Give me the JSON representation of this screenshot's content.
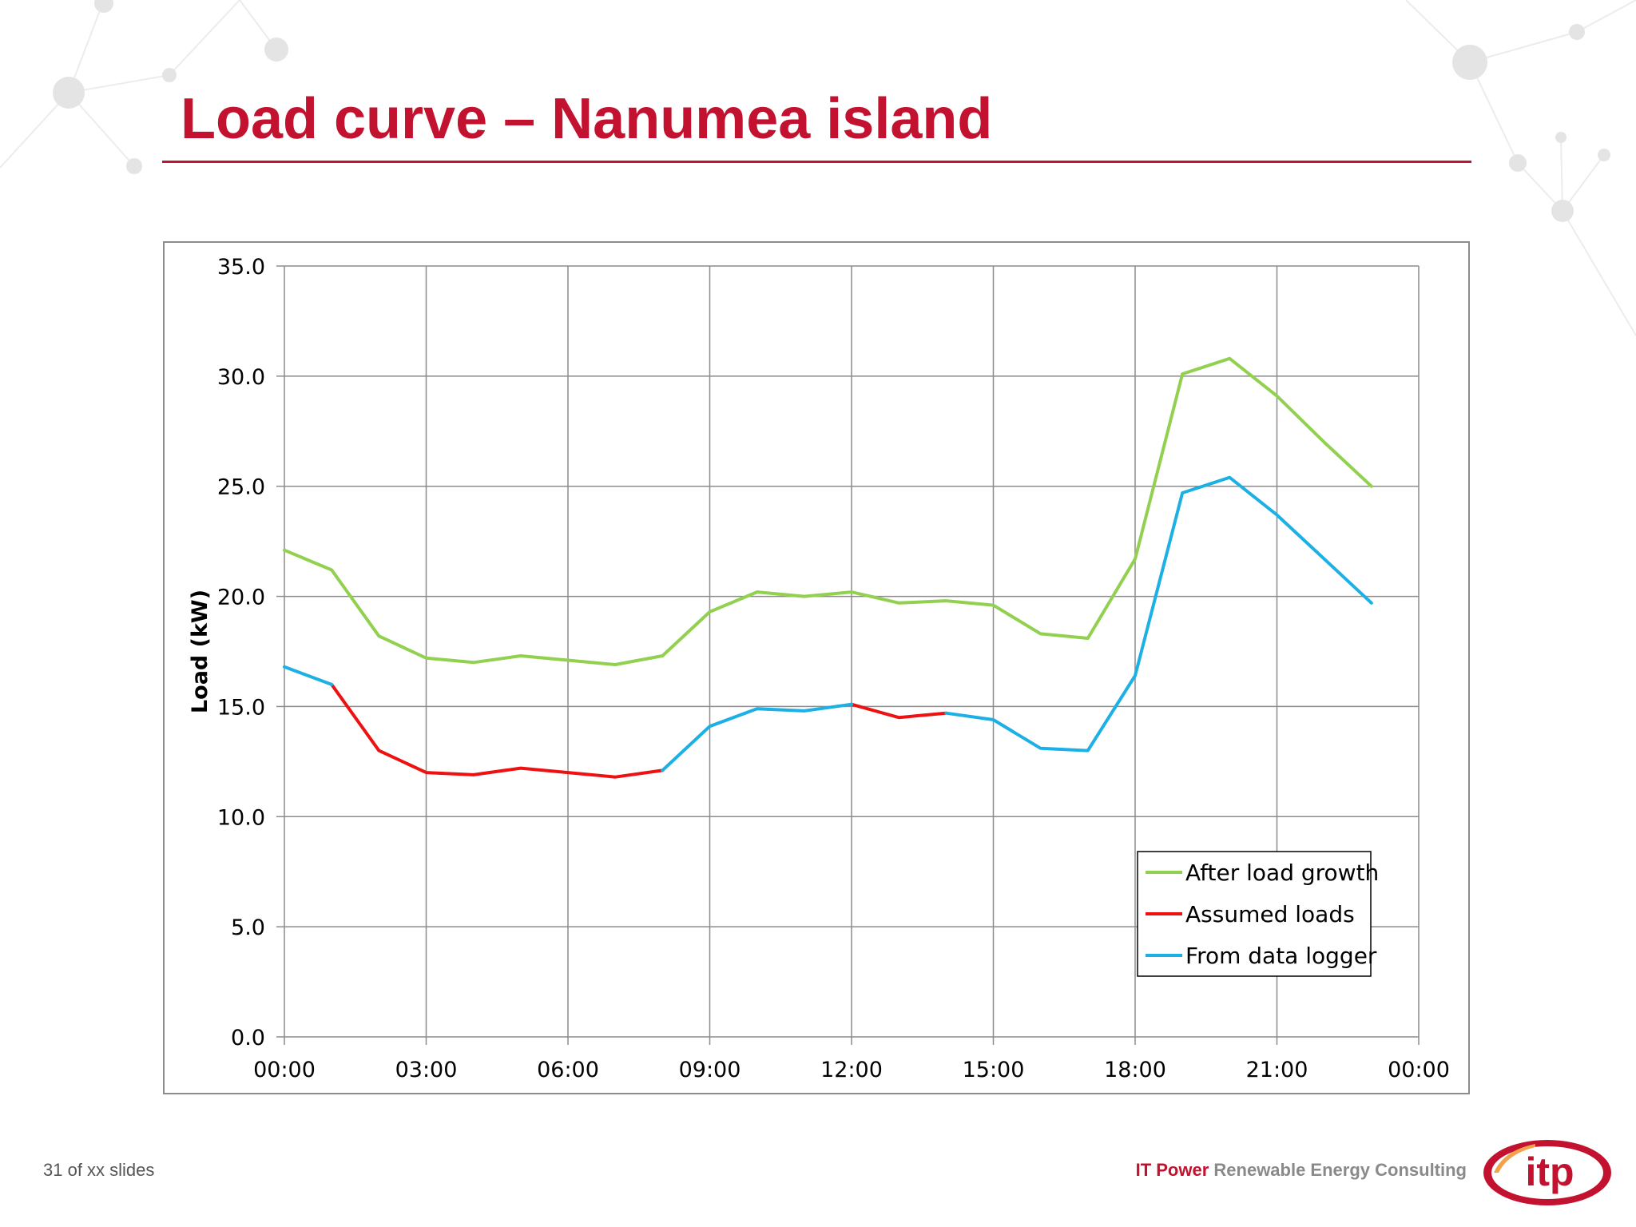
{
  "slide": {
    "title": "Load curve – Nanumea island",
    "slide_number": "31 of xx slides",
    "footer": {
      "brand": "IT Power",
      "tagline": " Renewable Energy Consulting",
      "logo_text": "itp"
    },
    "colors": {
      "title": "#c2122f",
      "rule": "#c2122f",
      "logo_ring": "#c2122f"
    }
  },
  "chart_data": {
    "type": "line",
    "title": "",
    "xlabel": "",
    "ylabel": "Load (kW)",
    "x": [
      "00:00",
      "01:00",
      "02:00",
      "03:00",
      "04:00",
      "05:00",
      "06:00",
      "07:00",
      "08:00",
      "09:00",
      "10:00",
      "11:00",
      "12:00",
      "13:00",
      "14:00",
      "15:00",
      "16:00",
      "17:00",
      "18:00",
      "19:00",
      "20:00",
      "21:00",
      "22:00",
      "23:00"
    ],
    "x_ticks": [
      "00:00",
      "03:00",
      "06:00",
      "09:00",
      "12:00",
      "15:00",
      "18:00",
      "21:00",
      "00:00"
    ],
    "x_range_hours": [
      0,
      24
    ],
    "ylim": [
      0,
      35
    ],
    "y_ticks": [
      "0.0",
      "5.0",
      "10.0",
      "15.0",
      "20.0",
      "25.0",
      "30.0",
      "35.0"
    ],
    "grid": true,
    "legend_position": "bottom-right",
    "series": [
      {
        "name": "After load growth",
        "color": "#92d050",
        "values": [
          22.1,
          21.2,
          18.2,
          17.2,
          17.0,
          17.3,
          17.1,
          16.9,
          17.3,
          19.3,
          20.2,
          20.0,
          20.2,
          19.7,
          19.8,
          19.6,
          18.3,
          18.1,
          21.7,
          30.1,
          30.8,
          29.1,
          27.0,
          25.0
        ]
      },
      {
        "name": "Assumed loads",
        "color": "#ee1111",
        "values": [
          null,
          16.0,
          13.0,
          12.0,
          11.9,
          12.2,
          12.0,
          11.8,
          12.1,
          null,
          null,
          null,
          15.1,
          14.5,
          14.7,
          null,
          null,
          null,
          null,
          null,
          null,
          null,
          null,
          null
        ]
      },
      {
        "name": "From data logger",
        "color": "#1cb0e4",
        "values": [
          16.8,
          16.0,
          null,
          null,
          null,
          null,
          null,
          null,
          12.1,
          14.1,
          14.9,
          14.8,
          15.1,
          null,
          14.7,
          14.4,
          13.1,
          13.0,
          16.4,
          24.7,
          25.4,
          23.7,
          21.7,
          19.7
        ]
      }
    ]
  }
}
